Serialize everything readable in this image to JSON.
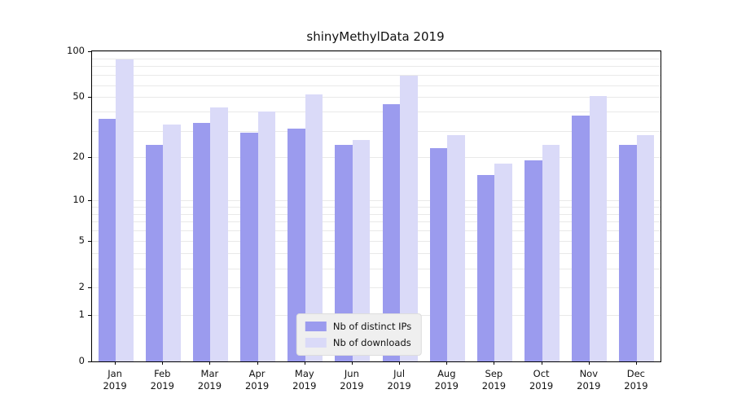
{
  "chart_data": {
    "type": "bar",
    "title": "shinyMethylData 2019",
    "categories": [
      "Jan",
      "Feb",
      "Mar",
      "Apr",
      "May",
      "Jun",
      "Jul",
      "Aug",
      "Sep",
      "Oct",
      "Nov",
      "Dec"
    ],
    "category_year": "2019",
    "series": [
      {
        "name": "Nb of distinct IPs",
        "color": "#9b9bee",
        "values": [
          36,
          24,
          34,
          29,
          31,
          24,
          45,
          23,
          15,
          19,
          38,
          24
        ]
      },
      {
        "name": "Nb of downloads",
        "color": "#dadaf8",
        "values": [
          88,
          33,
          43,
          40,
          52,
          26,
          69,
          28,
          18,
          24,
          51,
          28
        ]
      }
    ],
    "xlabel": "",
    "ylabel": "",
    "ylim": [
      0,
      100
    ],
    "yscale": "log1p",
    "yticks": [
      0,
      1,
      2,
      5,
      10,
      20,
      50,
      100
    ],
    "minor_gridlines": [
      1,
      2,
      3,
      4,
      5,
      6,
      7,
      8,
      9,
      10,
      20,
      30,
      40,
      50,
      60,
      70,
      80,
      90,
      100
    ],
    "grid": true,
    "legend_position": "lower center",
    "colors": {
      "bar_primary": "#9b9bee",
      "bar_secondary": "#dadaf8",
      "gridline": "#e9e9e9",
      "axis": "#000000",
      "legend_background": "#efefef"
    }
  }
}
